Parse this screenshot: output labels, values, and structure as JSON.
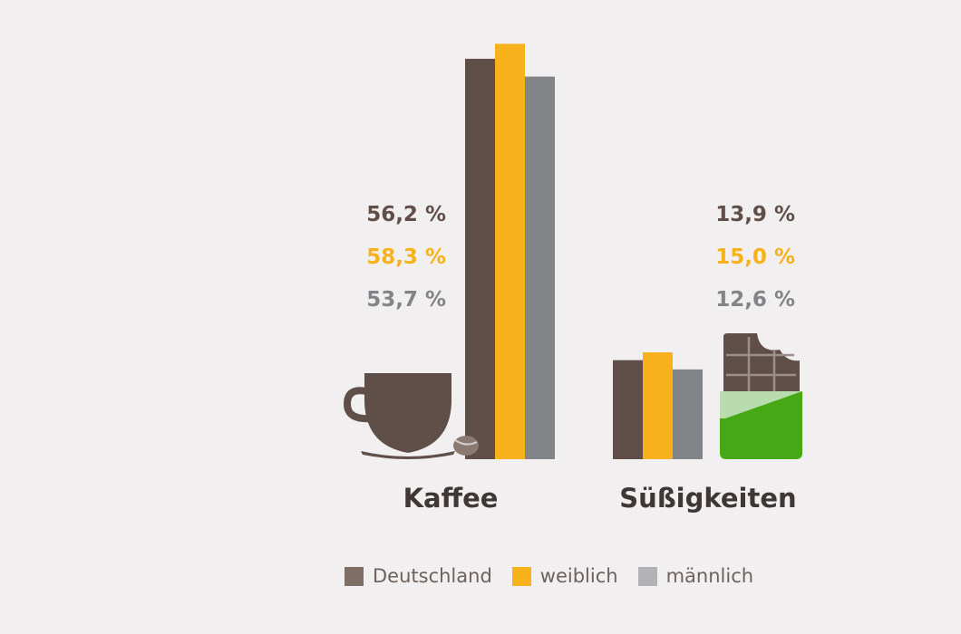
{
  "chart_data": {
    "type": "bar",
    "categories": [
      "Kaffee",
      "Süßigkeiten"
    ],
    "series": [
      {
        "name": "Deutschland",
        "values": [
          56.2,
          13.9
        ],
        "labels": [
          "56,2 %",
          "13,9 %"
        ],
        "color": "#5f4f48"
      },
      {
        "name": "weiblich",
        "values": [
          58.3,
          15.0
        ],
        "labels": [
          "58,3 %",
          "15,0 %"
        ],
        "color": "#f7b21b"
      },
      {
        "name": "männlich",
        "values": [
          53.7,
          12.6
        ],
        "labels": [
          "53,7 %",
          "12,6 %"
        ],
        "color": "#838487"
      }
    ],
    "ylim": [
      0,
      60
    ],
    "grid": false,
    "legend_position": "bottom",
    "icons": [
      "coffee-cup-icon",
      "chocolate-bar-icon"
    ]
  },
  "colors": {
    "background": "#f2eff0",
    "category_text": "#3e3735",
    "legend_text": "#6d625c",
    "chocolate": "#5f4f48",
    "wrapper_green": "#45a814",
    "wrapper_light": "#b9dcae"
  }
}
